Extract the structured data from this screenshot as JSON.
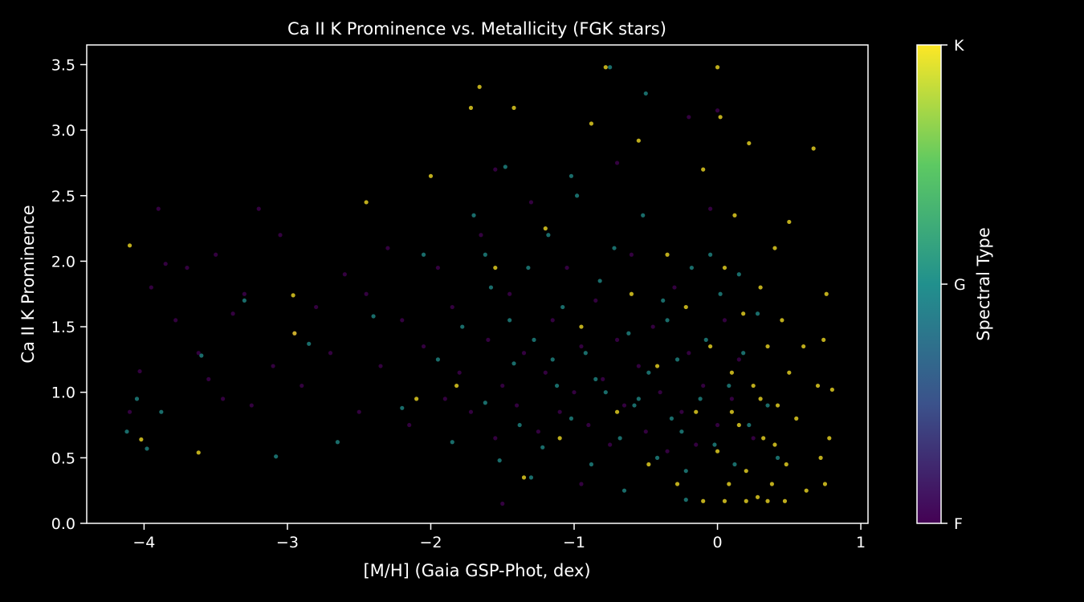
{
  "chart_data": {
    "type": "scatter",
    "title": "Ca II K Prominence vs. Metallicity (FGK stars)",
    "xlabel": "[M/H] (Gaia GSP-Phot, dex)",
    "ylabel": "Ca II K Prominence",
    "xlim": [
      -4.4,
      1.05
    ],
    "ylim": [
      0.0,
      3.65
    ],
    "x_ticks": [
      -4,
      -3,
      -2,
      -1,
      0,
      1
    ],
    "x_tick_labels": [
      "−4",
      "−3",
      "−2",
      "−1",
      "0",
      "1"
    ],
    "y_ticks": [
      0.0,
      0.5,
      1.0,
      1.5,
      2.0,
      2.5,
      3.0,
      3.5
    ],
    "y_tick_labels": [
      "0.0",
      "0.5",
      "1.0",
      "1.5",
      "2.0",
      "2.5",
      "3.0",
      "3.5"
    ],
    "grid": false,
    "colormap": "viridis",
    "colorbar": {
      "label": "Spectral Type",
      "ticks": [
        "F",
        "G",
        "K"
      ],
      "colors": [
        "#440154",
        "#3b528b",
        "#21908d",
        "#5dc962",
        "#fde725"
      ]
    },
    "marker_color_by_type": {
      "F": "#440154",
      "G": "#21908d",
      "K": "#fde725"
    },
    "series": [
      {
        "class": "F",
        "points": [
          [
            -4.1,
            0.85
          ],
          [
            -4.03,
            1.16
          ],
          [
            -3.95,
            1.8
          ],
          [
            -3.9,
            2.4
          ],
          [
            -3.85,
            1.98
          ],
          [
            -3.78,
            1.55
          ],
          [
            -3.7,
            1.95
          ],
          [
            -3.62,
            1.3
          ],
          [
            -3.55,
            1.1
          ],
          [
            -3.5,
            2.05
          ],
          [
            -3.45,
            0.95
          ],
          [
            -3.38,
            1.6
          ],
          [
            -3.3,
            1.75
          ],
          [
            -3.25,
            0.9
          ],
          [
            -3.2,
            2.4
          ],
          [
            -3.1,
            1.2
          ],
          [
            -3.05,
            2.2
          ],
          [
            -2.95,
            1.45
          ],
          [
            -2.9,
            1.05
          ],
          [
            -2.8,
            1.65
          ],
          [
            -2.7,
            1.3
          ],
          [
            -2.6,
            1.9
          ],
          [
            -2.5,
            0.85
          ],
          [
            -2.45,
            1.75
          ],
          [
            -2.35,
            1.2
          ],
          [
            -2.3,
            2.1
          ],
          [
            -2.2,
            1.55
          ],
          [
            -2.15,
            0.75
          ],
          [
            -2.05,
            1.35
          ],
          [
            -1.95,
            1.95
          ],
          [
            -1.9,
            0.95
          ],
          [
            -1.85,
            1.65
          ],
          [
            -1.8,
            1.15
          ],
          [
            -1.72,
            0.85
          ],
          [
            -1.65,
            2.2
          ],
          [
            -1.6,
            1.4
          ],
          [
            -1.55,
            0.65
          ],
          [
            -1.5,
            1.05
          ],
          [
            -1.45,
            1.75
          ],
          [
            -1.4,
            0.9
          ],
          [
            -1.35,
            1.3
          ],
          [
            -1.3,
            2.45
          ],
          [
            -1.25,
            0.7
          ],
          [
            -1.2,
            1.15
          ],
          [
            -1.15,
            1.55
          ],
          [
            -1.1,
            0.85
          ],
          [
            -1.05,
            1.95
          ],
          [
            -1.0,
            1.0
          ],
          [
            -0.95,
            1.35
          ],
          [
            -0.9,
            0.75
          ],
          [
            -0.85,
            1.7
          ],
          [
            -0.8,
            1.1
          ],
          [
            -0.75,
            0.6
          ],
          [
            -0.7,
            1.4
          ],
          [
            -0.65,
            0.9
          ],
          [
            -0.6,
            2.05
          ],
          [
            -0.55,
            1.2
          ],
          [
            -0.5,
            0.7
          ],
          [
            -0.45,
            1.5
          ],
          [
            -0.4,
            1.0
          ],
          [
            -0.35,
            0.55
          ],
          [
            -0.3,
            1.8
          ],
          [
            -0.25,
            0.85
          ],
          [
            -0.2,
            1.3
          ],
          [
            -0.15,
            0.6
          ],
          [
            -0.1,
            1.05
          ],
          [
            -0.05,
            2.4
          ],
          [
            0.0,
            0.75
          ],
          [
            0.05,
            1.55
          ],
          [
            0.1,
            0.95
          ],
          [
            0.15,
            1.25
          ],
          [
            0.25,
            0.65
          ],
          [
            -1.5,
            0.15
          ],
          [
            -0.7,
            2.75
          ],
          [
            -0.2,
            3.1
          ],
          [
            -1.55,
            2.7
          ],
          [
            0.0,
            3.15
          ],
          [
            -0.95,
            0.3
          ]
        ]
      },
      {
        "class": "G",
        "points": [
          [
            -4.12,
            0.7
          ],
          [
            -4.05,
            0.95
          ],
          [
            -3.98,
            0.57
          ],
          [
            -3.88,
            0.85
          ],
          [
            -3.6,
            1.28
          ],
          [
            -3.3,
            1.7
          ],
          [
            -3.08,
            0.51
          ],
          [
            -2.85,
            1.37
          ],
          [
            -2.65,
            0.62
          ],
          [
            -2.4,
            1.58
          ],
          [
            -2.2,
            0.88
          ],
          [
            -2.05,
            2.05
          ],
          [
            -1.95,
            1.25
          ],
          [
            -1.85,
            0.62
          ],
          [
            -1.78,
            1.5
          ],
          [
            -1.7,
            2.35
          ],
          [
            -1.62,
            0.92
          ],
          [
            -1.58,
            1.8
          ],
          [
            -1.52,
            0.48
          ],
          [
            -1.48,
            2.72
          ],
          [
            -1.42,
            1.22
          ],
          [
            -1.38,
            0.75
          ],
          [
            -1.32,
            1.95
          ],
          [
            -1.28,
            1.4
          ],
          [
            -1.22,
            0.58
          ],
          [
            -1.18,
            2.2
          ],
          [
            -1.12,
            1.05
          ],
          [
            -1.08,
            1.65
          ],
          [
            -1.02,
            0.8
          ],
          [
            -0.98,
            2.5
          ],
          [
            -0.92,
            1.3
          ],
          [
            -0.88,
            0.45
          ],
          [
            -0.82,
            1.85
          ],
          [
            -0.78,
            1.0
          ],
          [
            -0.72,
            2.1
          ],
          [
            -0.68,
            0.65
          ],
          [
            -0.62,
            1.45
          ],
          [
            -0.58,
            0.9
          ],
          [
            -0.52,
            2.35
          ],
          [
            -0.48,
            1.15
          ],
          [
            -0.42,
            0.5
          ],
          [
            -0.38,
            1.7
          ],
          [
            -0.32,
            0.8
          ],
          [
            -0.28,
            1.25
          ],
          [
            -0.22,
            0.4
          ],
          [
            -0.18,
            1.95
          ],
          [
            -0.12,
            0.95
          ],
          [
            -0.08,
            1.4
          ],
          [
            -0.02,
            0.6
          ],
          [
            0.02,
            1.75
          ],
          [
            0.08,
            1.05
          ],
          [
            0.12,
            0.45
          ],
          [
            0.18,
            1.3
          ],
          [
            0.22,
            0.75
          ],
          [
            0.28,
            1.6
          ],
          [
            0.35,
            0.9
          ],
          [
            0.42,
            0.5
          ],
          [
            -1.45,
            1.55
          ],
          [
            -1.15,
            1.25
          ],
          [
            -0.85,
            1.1
          ],
          [
            -0.55,
            0.95
          ],
          [
            -0.25,
            0.7
          ],
          [
            -1.62,
            2.05
          ],
          [
            -1.3,
            0.35
          ],
          [
            -0.5,
            3.28
          ],
          [
            -0.75,
            3.48
          ],
          [
            -0.22,
            0.18
          ],
          [
            -1.02,
            2.65
          ],
          [
            -0.65,
            0.25
          ],
          [
            -0.05,
            2.05
          ],
          [
            -0.35,
            1.55
          ],
          [
            0.15,
            1.9
          ]
        ]
      },
      {
        "class": "K",
        "points": [
          [
            -4.1,
            2.12
          ],
          [
            -4.02,
            0.64
          ],
          [
            -3.62,
            0.54
          ],
          [
            -2.96,
            1.74
          ],
          [
            -2.95,
            1.45
          ],
          [
            -2.45,
            2.45
          ],
          [
            -2.1,
            0.95
          ],
          [
            -2.0,
            2.65
          ],
          [
            -1.82,
            1.05
          ],
          [
            -1.72,
            3.17
          ],
          [
            -1.66,
            3.33
          ],
          [
            -1.55,
            1.95
          ],
          [
            -1.42,
            3.17
          ],
          [
            -1.35,
            0.35
          ],
          [
            -1.2,
            2.25
          ],
          [
            -1.1,
            0.65
          ],
          [
            -0.95,
            1.5
          ],
          [
            -0.88,
            3.05
          ],
          [
            -0.78,
            3.48
          ],
          [
            -0.7,
            0.85
          ],
          [
            -0.6,
            1.75
          ],
          [
            -0.55,
            2.92
          ],
          [
            -0.48,
            0.45
          ],
          [
            -0.42,
            1.2
          ],
          [
            -0.35,
            2.05
          ],
          [
            -0.28,
            0.3
          ],
          [
            -0.22,
            1.65
          ],
          [
            -0.15,
            0.85
          ],
          [
            -0.1,
            2.7
          ],
          [
            -0.05,
            1.35
          ],
          [
            0.0,
            0.55
          ],
          [
            0.02,
            3.1
          ],
          [
            0.05,
            1.95
          ],
          [
            0.08,
            0.3
          ],
          [
            0.1,
            1.15
          ],
          [
            0.12,
            2.35
          ],
          [
            0.15,
            0.75
          ],
          [
            0.18,
            1.6
          ],
          [
            0.2,
            0.4
          ],
          [
            0.22,
            2.9
          ],
          [
            0.25,
            1.05
          ],
          [
            0.28,
            0.2
          ],
          [
            0.3,
            1.8
          ],
          [
            0.32,
            0.65
          ],
          [
            0.35,
            1.35
          ],
          [
            0.38,
            0.3
          ],
          [
            0.4,
            2.1
          ],
          [
            0.42,
            0.9
          ],
          [
            0.45,
            1.55
          ],
          [
            0.48,
            0.45
          ],
          [
            0.5,
            1.15
          ],
          [
            0.5,
            2.3
          ],
          [
            0.55,
            0.8
          ],
          [
            0.6,
            1.35
          ],
          [
            0.62,
            0.25
          ],
          [
            0.67,
            2.86
          ],
          [
            0.7,
            1.05
          ],
          [
            0.72,
            0.5
          ],
          [
            0.74,
            1.4
          ],
          [
            0.75,
            0.3
          ],
          [
            0.76,
            1.75
          ],
          [
            0.78,
            0.65
          ],
          [
            0.8,
            1.02
          ],
          [
            0.05,
            0.17
          ],
          [
            0.2,
            0.17
          ],
          [
            0.35,
            0.17
          ],
          [
            0.47,
            0.17
          ],
          [
            -0.1,
            0.17
          ],
          [
            0.1,
            0.85
          ],
          [
            0.3,
            0.95
          ],
          [
            0.4,
            0.6
          ],
          [
            0.0,
            3.48
          ]
        ]
      }
    ]
  }
}
